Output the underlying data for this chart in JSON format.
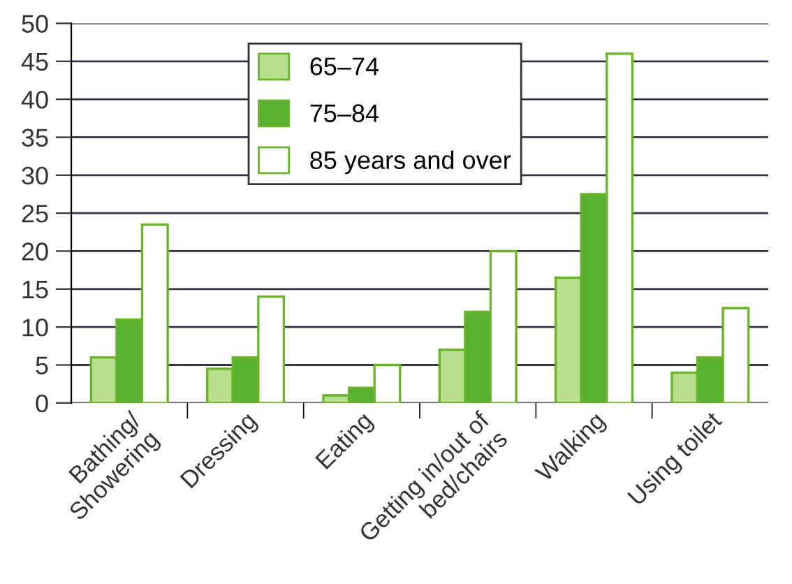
{
  "chart_data": {
    "type": "bar",
    "categories": [
      "Bathing/\nShowering",
      "Dressing",
      "Eating",
      "Getting in/out of\nbed/chairs",
      "Walking",
      "Using toilet"
    ],
    "series": [
      {
        "name": "65–74",
        "color": "#b8df8c",
        "values": [
          6,
          4.5,
          1,
          7,
          16.5,
          4
        ]
      },
      {
        "name": "75–84",
        "color": "#58b030",
        "values": [
          11,
          6,
          2,
          12,
          27.5,
          6
        ]
      },
      {
        "name": "85 years and over",
        "color": "#ffffff",
        "values": [
          23.5,
          14,
          5,
          20,
          46,
          12.5
        ]
      }
    ],
    "ylim": [
      0,
      50
    ],
    "yticks": [
      0,
      5,
      10,
      15,
      20,
      25,
      30,
      35,
      40,
      45,
      50
    ],
    "grid": "y",
    "legend": "top"
  }
}
